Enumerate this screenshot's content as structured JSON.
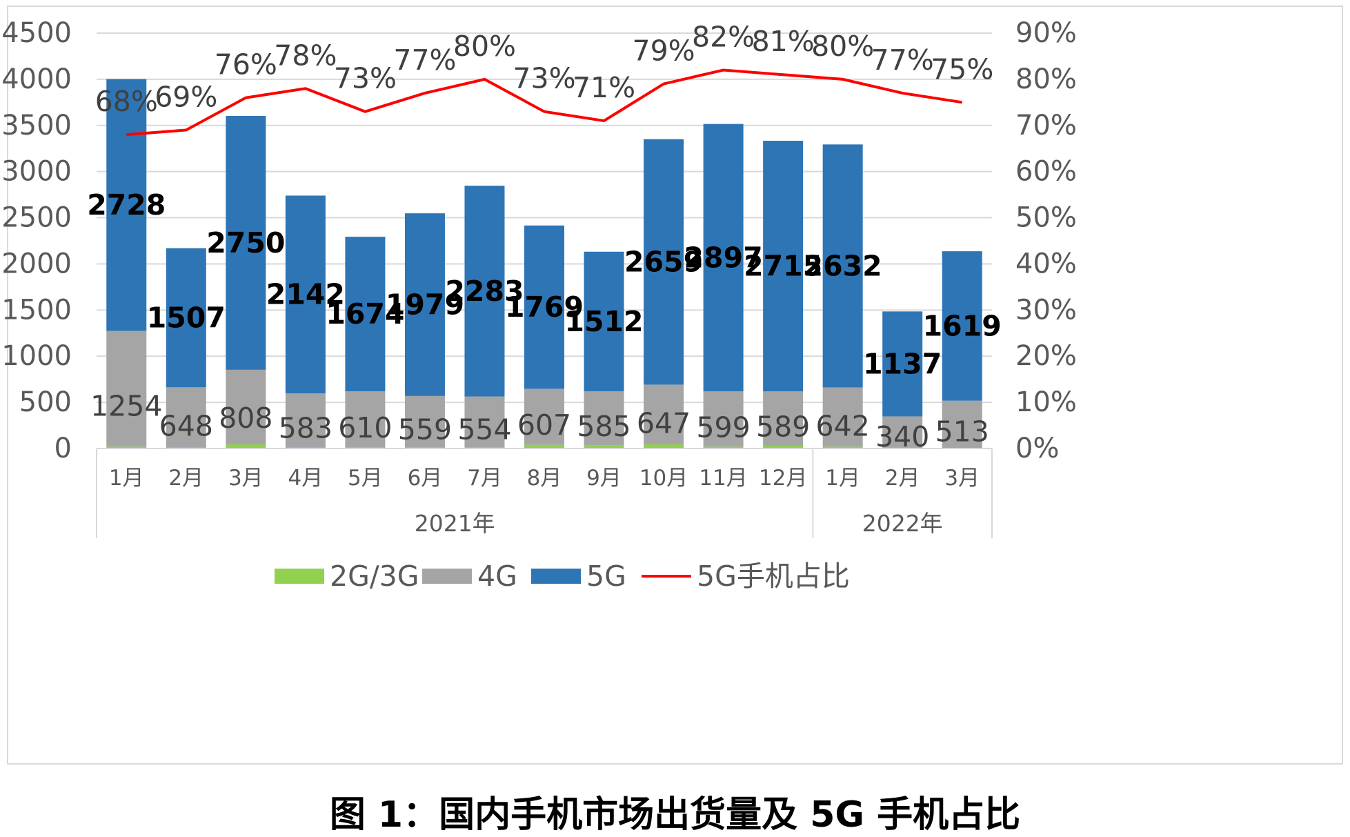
{
  "caption": "图 1：国内手机市场出货量及 5G 手机占比",
  "chart_data": {
    "type": "bar",
    "stacked": true,
    "categories": [
      "1月",
      "2月",
      "3月",
      "4月",
      "5月",
      "6月",
      "7月",
      "8月",
      "9月",
      "10月",
      "11月",
      "12月",
      "1月",
      "2月",
      "3月"
    ],
    "groups": [
      {
        "label": "2021年",
        "count": 12
      },
      {
        "label": "2022年",
        "count": 3
      }
    ],
    "series": [
      {
        "name": "2G/3G",
        "color": "#92d050",
        "values": [
          20,
          15,
          45,
          15,
          10,
          10,
          10,
          40,
          35,
          45,
          20,
          30,
          20,
          8,
          5
        ]
      },
      {
        "name": "4G",
        "color": "#a5a5a5",
        "values": [
          1254,
          648,
          808,
          583,
          610,
          559,
          554,
          607,
          585,
          647,
          599,
          589,
          642,
          340,
          513
        ]
      },
      {
        "name": "5G",
        "color": "#2e75b6",
        "values": [
          2728,
          1507,
          2750,
          2142,
          1674,
          1979,
          2283,
          1769,
          1512,
          2659,
          2897,
          2715,
          2632,
          1137,
          1619
        ]
      }
    ],
    "line_series": {
      "name": "5G手机占比",
      "color": "#ff0000",
      "axis": "right",
      "values": [
        68,
        69,
        76,
        78,
        73,
        77,
        80,
        73,
        71,
        79,
        82,
        81,
        80,
        77,
        75
      ],
      "labels": [
        "68%",
        "69%",
        "76%",
        "78%",
        "73%",
        "77%",
        "80%",
        "73%",
        "71%",
        "79%",
        "82%",
        "81%",
        "80%",
        "77%",
        "75%"
      ]
    },
    "y_left": {
      "min": 0,
      "max": 4500,
      "ticks": [
        "0",
        "500",
        "1000",
        "1500",
        "2000",
        "2500",
        "3000",
        "3500",
        "4000",
        "4500"
      ]
    },
    "y_right": {
      "min": 0,
      "max": 90,
      "ticks": [
        "0%",
        "10%",
        "20%",
        "30%",
        "40%",
        "50%",
        "60%",
        "70%",
        "80%",
        "90%"
      ]
    },
    "grid": true,
    "legend_position": "bottom",
    "legend": [
      "2G/3G",
      "4G",
      "5G",
      "5G手机占比"
    ]
  }
}
